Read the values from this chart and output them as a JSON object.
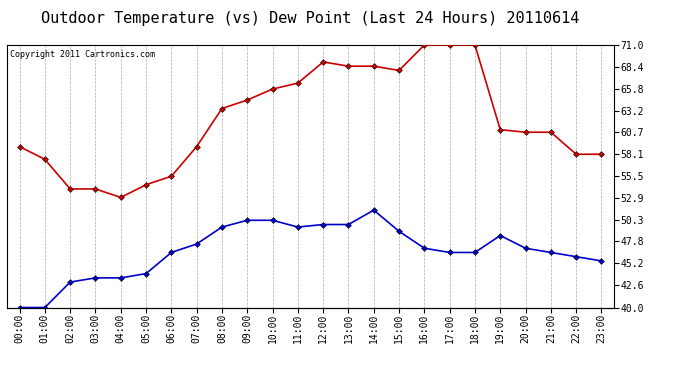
{
  "title": "Outdoor Temperature (vs) Dew Point (Last 24 Hours) 20110614",
  "copyright": "Copyright 2011 Cartronics.com",
  "hours": [
    "00:00",
    "01:00",
    "02:00",
    "03:00",
    "04:00",
    "05:00",
    "06:00",
    "07:00",
    "08:00",
    "09:00",
    "10:00",
    "11:00",
    "12:00",
    "13:00",
    "14:00",
    "15:00",
    "16:00",
    "17:00",
    "18:00",
    "19:00",
    "20:00",
    "21:00",
    "22:00",
    "23:00"
  ],
  "temp": [
    59.0,
    57.5,
    54.0,
    54.0,
    53.0,
    54.5,
    55.5,
    59.0,
    63.5,
    64.5,
    65.8,
    66.5,
    69.0,
    68.5,
    68.5,
    68.0,
    71.0,
    71.0,
    71.0,
    61.0,
    60.7,
    60.7,
    58.1,
    58.1
  ],
  "dew": [
    40.0,
    40.0,
    43.0,
    43.5,
    43.5,
    44.0,
    46.5,
    47.5,
    49.5,
    50.3,
    50.3,
    49.5,
    49.8,
    49.8,
    51.5,
    49.0,
    47.0,
    46.5,
    46.5,
    48.5,
    47.0,
    46.5,
    46.0,
    45.5
  ],
  "temp_color": "#cc0000",
  "dew_color": "#0000cc",
  "marker": "D",
  "marker_size": 3,
  "ylim": [
    40.0,
    71.0
  ],
  "yticks": [
    40.0,
    42.6,
    45.2,
    47.8,
    50.3,
    52.9,
    55.5,
    58.1,
    60.7,
    63.2,
    65.8,
    68.4,
    71.0
  ],
  "bg_color": "#ffffff",
  "grid_color": "#aaaaaa",
  "title_fontsize": 11,
  "copyright_fontsize": 6,
  "tick_fontsize": 7
}
